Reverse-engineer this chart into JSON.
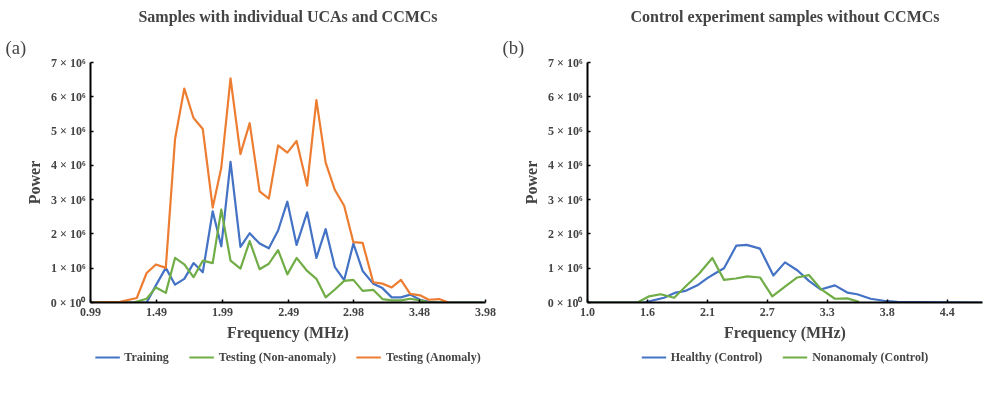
{
  "chart_data": [
    {
      "type": "line",
      "title": "Samples with individual UCAs and CCMCs",
      "xlabel": "Frequency (MHz)",
      "ylabel": "Power",
      "annotations": [
        "(a)"
      ],
      "xlim": [
        0.99,
        3.98
      ],
      "xticks": [
        0.99,
        1.49,
        1.99,
        2.49,
        2.98,
        3.48,
        3.98
      ],
      "ylim": [
        0,
        7000000
      ],
      "yticks": [
        {
          "value": 0,
          "label": "0 × 10⁰"
        },
        {
          "value": 1000000,
          "label": "1 × 10⁶"
        },
        {
          "value": 2000000,
          "label": "2 × 10⁶"
        },
        {
          "value": 3000000,
          "label": "3 × 10⁶"
        },
        {
          "value": 4000000,
          "label": "4 × 10⁶"
        },
        {
          "value": 5000000,
          "label": "5 × 10⁶"
        },
        {
          "value": 6000000,
          "label": "6 × 10⁶"
        },
        {
          "value": 7000000,
          "label": "7 × 10⁶"
        }
      ],
      "grid": false,
      "legend": "bottom",
      "series": [
        {
          "name": "Training",
          "color": "#4472c4",
          "x": [
            0.99,
            1.415,
            1.485,
            1.56,
            1.63,
            1.7,
            1.77,
            1.84,
            1.915,
            1.98,
            2.05,
            2.125,
            2.195,
            2.27,
            2.34,
            2.41,
            2.48,
            2.55,
            2.63,
            2.7,
            2.77,
            2.84,
            2.91,
            2.98,
            3.05,
            3.13,
            3.2,
            3.27,
            3.34,
            3.41,
            3.485,
            3.55,
            3.63,
            3.965
          ],
          "values": [
            0,
            0,
            500000,
            1010000,
            520000,
            690000,
            1150000,
            880000,
            2660000,
            1640000,
            4100000,
            1620000,
            2020000,
            1720000,
            1580000,
            2100000,
            2940000,
            1680000,
            2630000,
            1300000,
            2140000,
            1030000,
            650000,
            1720000,
            920000,
            550000,
            420000,
            150000,
            150000,
            230000,
            80000,
            20000,
            0,
            0
          ]
        },
        {
          "name": "Testing (Non-anomaly)",
          "color": "#70ad47",
          "x": [
            0.99,
            1.315,
            1.415,
            1.485,
            1.56,
            1.63,
            1.7,
            1.77,
            1.84,
            1.915,
            1.98,
            2.05,
            2.125,
            2.195,
            2.27,
            2.34,
            2.41,
            2.48,
            2.55,
            2.63,
            2.7,
            2.77,
            2.84,
            2.91,
            2.98,
            3.05,
            3.13,
            3.2,
            3.27,
            3.34,
            3.41,
            3.485,
            3.55,
            3.965
          ],
          "values": [
            0,
            0,
            110000,
            440000,
            280000,
            1300000,
            1110000,
            740000,
            1220000,
            1150000,
            2710000,
            1220000,
            990000,
            1790000,
            970000,
            1130000,
            1530000,
            820000,
            1300000,
            920000,
            690000,
            150000,
            380000,
            630000,
            660000,
            340000,
            370000,
            100000,
            60000,
            60000,
            110000,
            60000,
            0,
            0
          ]
        },
        {
          "name": "Testing (Anomaly)",
          "color": "#ed7d31",
          "x": [
            0.99,
            1.215,
            1.34,
            1.415,
            1.485,
            1.56,
            1.63,
            1.7,
            1.77,
            1.84,
            1.915,
            1.98,
            2.05,
            2.125,
            2.195,
            2.27,
            2.34,
            2.41,
            2.48,
            2.55,
            2.63,
            2.7,
            2.77,
            2.84,
            2.91,
            2.98,
            3.05,
            3.13,
            3.2,
            3.27,
            3.34,
            3.41,
            3.485,
            3.55,
            3.63,
            3.7
          ],
          "values": [
            0,
            20000,
            130000,
            860000,
            1110000,
            1010000,
            4770000,
            6240000,
            5380000,
            5060000,
            2770000,
            3930000,
            6540000,
            4330000,
            5230000,
            3240000,
            3030000,
            4580000,
            4370000,
            4710000,
            3410000,
            5900000,
            4080000,
            3280000,
            2820000,
            1760000,
            1740000,
            590000,
            550000,
            440000,
            660000,
            250000,
            210000,
            80000,
            100000,
            0
          ]
        }
      ]
    },
    {
      "type": "line",
      "title": "Control experiment samples without CCMCs",
      "xlabel": "Frequency (MHz)",
      "ylabel": "Power",
      "annotations": [
        "(b)"
      ],
      "xlim": [
        1.0,
        4.73
      ],
      "xticks": [
        {
          "value": 1.0,
          "label": "1.0"
        },
        {
          "value": 1.566,
          "label": "1.6"
        },
        {
          "value": 2.132,
          "label": "2.1"
        },
        {
          "value": 2.698,
          "label": "2.7"
        },
        {
          "value": 3.264,
          "label": "3.3"
        },
        {
          "value": 3.83,
          "label": "3.8"
        },
        {
          "value": 4.396,
          "label": "4.4"
        }
      ],
      "ylim": [
        0,
        7000000
      ],
      "yticks": [
        {
          "value": 0,
          "label": "0 × 10⁰"
        },
        {
          "value": 1000000,
          "label": "1 × 10⁶"
        },
        {
          "value": 2000000,
          "label": "2 × 10⁶"
        },
        {
          "value": 3000000,
          "label": "3 × 10⁶"
        },
        {
          "value": 4000000,
          "label": "4 × 10⁶"
        },
        {
          "value": 5000000,
          "label": "5 × 10⁶"
        },
        {
          "value": 6000000,
          "label": "6 × 10⁶"
        },
        {
          "value": 7000000,
          "label": "7 × 10⁶"
        }
      ],
      "grid": false,
      "legend": "bottom",
      "series": [
        {
          "name": "Healthy (Control)",
          "color": "#4472c4",
          "x": [
            1.0,
            1.535,
            1.723,
            1.833,
            1.928,
            2.038,
            2.132,
            2.211,
            2.289,
            2.406,
            2.503,
            2.629,
            2.755,
            2.865,
            2.981,
            3.091,
            3.201,
            3.336,
            3.453,
            3.547,
            3.673,
            3.799,
            3.924,
            4.113,
            4.726
          ],
          "values": [
            0,
            0,
            140000,
            290000,
            340000,
            500000,
            710000,
            860000,
            1000000,
            1660000,
            1680000,
            1570000,
            790000,
            1170000,
            940000,
            630000,
            380000,
            500000,
            290000,
            240000,
            110000,
            50000,
            20000,
            10000,
            0
          ]
        },
        {
          "name": "Nonanomaly (Control)",
          "color": "#70ad47",
          "x": [
            1.0,
            1.472,
            1.582,
            1.692,
            1.818,
            1.943,
            2.053,
            2.179,
            2.289,
            2.399,
            2.509,
            2.629,
            2.745,
            2.871,
            2.981,
            3.091,
            3.201,
            3.336,
            3.453,
            3.563
          ],
          "values": [
            0,
            0,
            180000,
            240000,
            140000,
            520000,
            840000,
            1300000,
            660000,
            700000,
            760000,
            730000,
            180000,
            480000,
            730000,
            800000,
            400000,
            110000,
            120000,
            20000
          ]
        }
      ]
    }
  ]
}
